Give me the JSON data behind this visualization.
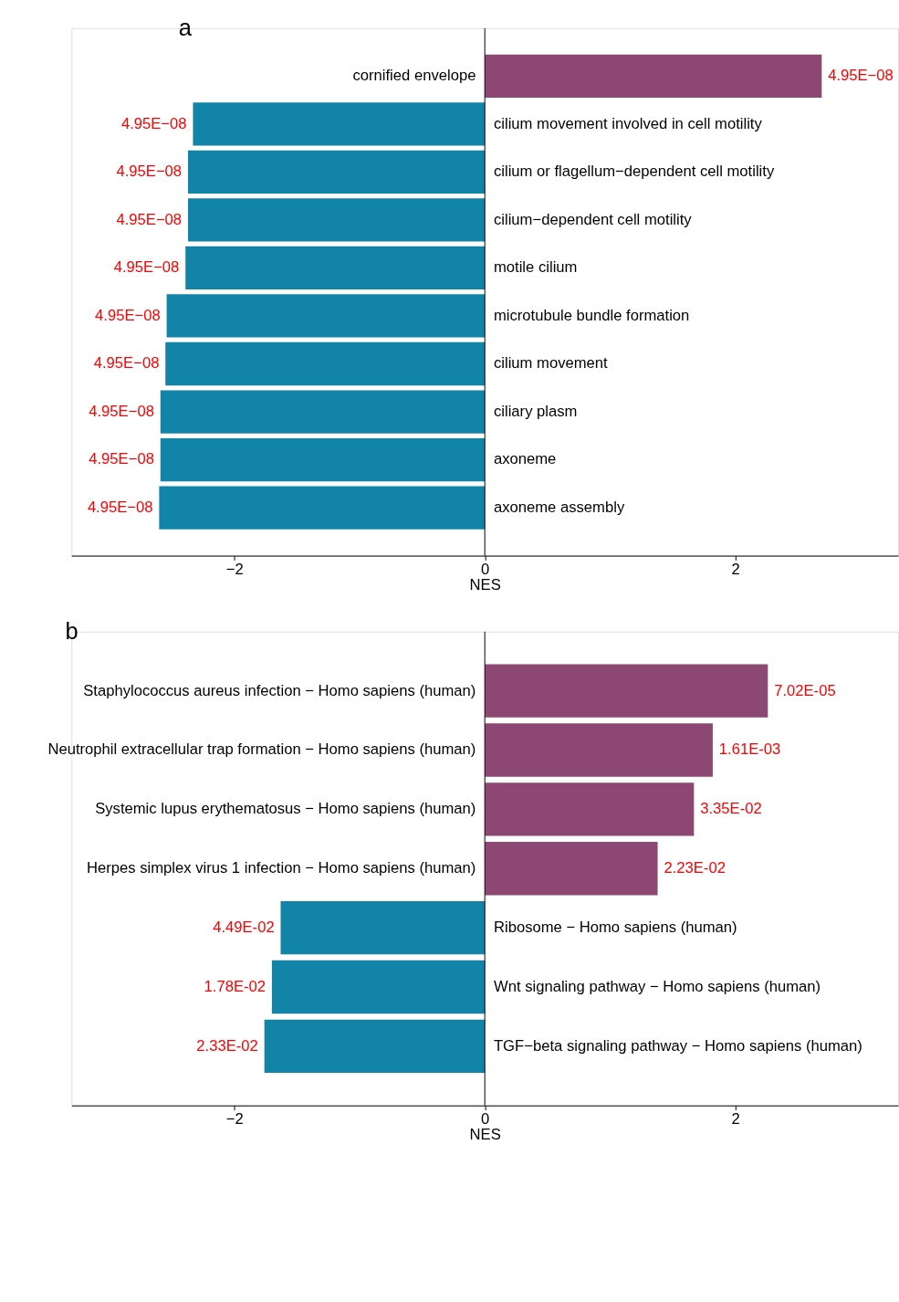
{
  "chart_data": [
    {
      "type": "bar",
      "orientation": "horizontal",
      "title": "a",
      "xlabel": "NES",
      "categories": [
        "cornified envelope",
        "cilium movement involved in cell motility",
        "cilium or flagellum−dependent cell motility",
        "cilium−dependent cell motility",
        "motile cilium",
        "microtubule bundle formation",
        "cilium movement",
        "ciliary plasm",
        "axoneme",
        "axoneme assembly"
      ],
      "values": [
        2.69,
        -2.33,
        -2.37,
        -2.37,
        -2.39,
        -2.54,
        -2.55,
        -2.59,
        -2.59,
        -2.6
      ],
      "colors": [
        "#8c4872",
        "#1184a7",
        "#1184a7",
        "#1184a7",
        "#1184a7",
        "#1184a7",
        "#1184a7",
        "#1184a7",
        "#1184a7",
        "#1184a7"
      ],
      "annotations": [
        {
          "text": "4.95E−08",
          "x": 2.69,
          "y": "cornified envelope"
        },
        {
          "text": "4.95E−08",
          "x": -2.33,
          "y": "cilium movement involved in cell motility"
        },
        {
          "text": "4.95E−08",
          "x": -2.37,
          "y": "cilium or flagellum−dependent cell motility"
        },
        {
          "text": "4.95E−08",
          "x": -2.37,
          "y": "cilium−dependent cell motility"
        },
        {
          "text": "4.95E−08",
          "x": -2.39,
          "y": "motile cilium"
        },
        {
          "text": "4.95E−08",
          "x": -2.54,
          "y": "microtubule bundle formation"
        },
        {
          "text": "4.95E−08",
          "x": -2.55,
          "y": "cilium movement"
        },
        {
          "text": "4.95E−08",
          "x": -2.59,
          "y": "ciliary plasm"
        },
        {
          "text": "4.95E−08",
          "x": -2.59,
          "y": "axoneme"
        },
        {
          "text": "4.95E−08",
          "x": -2.6,
          "y": "axoneme assembly"
        }
      ],
      "xlim": [
        -3.3,
        3.3
      ],
      "xticks": [
        {
          "value": -2,
          "label": "−2"
        },
        0,
        2
      ],
      "grid": false
    },
    {
      "type": "bar",
      "orientation": "horizontal",
      "title": "b",
      "xlabel": "NES",
      "categories": [
        "Staphylococcus aureus infection − Homo sapiens (human)",
        "Neutrophil extracellular trap formation − Homo sapiens (human)",
        "Systemic lupus erythematosus − Homo sapiens (human)",
        "Herpes simplex virus 1 infection − Homo sapiens (human)",
        "Ribosome − Homo sapiens (human)",
        "Wnt signaling pathway − Homo sapiens (human)",
        "TGF−beta signaling pathway − Homo sapiens (human)"
      ],
      "values": [
        2.26,
        1.82,
        1.67,
        1.38,
        -1.63,
        -1.7,
        -1.76
      ],
      "colors": [
        "#8c4872",
        "#8c4872",
        "#8c4872",
        "#8c4872",
        "#1184a7",
        "#1184a7",
        "#1184a7"
      ],
      "annotations": [
        {
          "text": "7.02E-05",
          "x": 2.26,
          "y": "Staphylococcus aureus infection − Homo sapiens (human)"
        },
        {
          "text": "1.61E-03",
          "x": 1.82,
          "y": "Neutrophil extracellular trap formation − Homo sapiens (human)"
        },
        {
          "text": "3.35E-02",
          "x": 1.67,
          "y": "Systemic lupus erythematosus − Homo sapiens (human)"
        },
        {
          "text": "2.23E-02",
          "x": 1.38,
          "y": "Herpes simplex virus 1 infection − Homo sapiens (human)"
        },
        {
          "text": "4.49E-02",
          "x": -1.63,
          "y": "Ribosome − Homo sapiens (human)"
        },
        {
          "text": "1.78E-02",
          "x": -1.7,
          "y": "Wnt signaling pathway − Homo sapiens (human)"
        },
        {
          "text": "2.33E-02",
          "x": -1.76,
          "y": "TGF−beta signaling pathway − Homo sapiens (human)"
        }
      ],
      "xlim": [
        -3.3,
        3.3
      ],
      "xticks": [
        {
          "value": -2,
          "label": "−2"
        },
        0,
        2
      ],
      "grid": false
    }
  ]
}
